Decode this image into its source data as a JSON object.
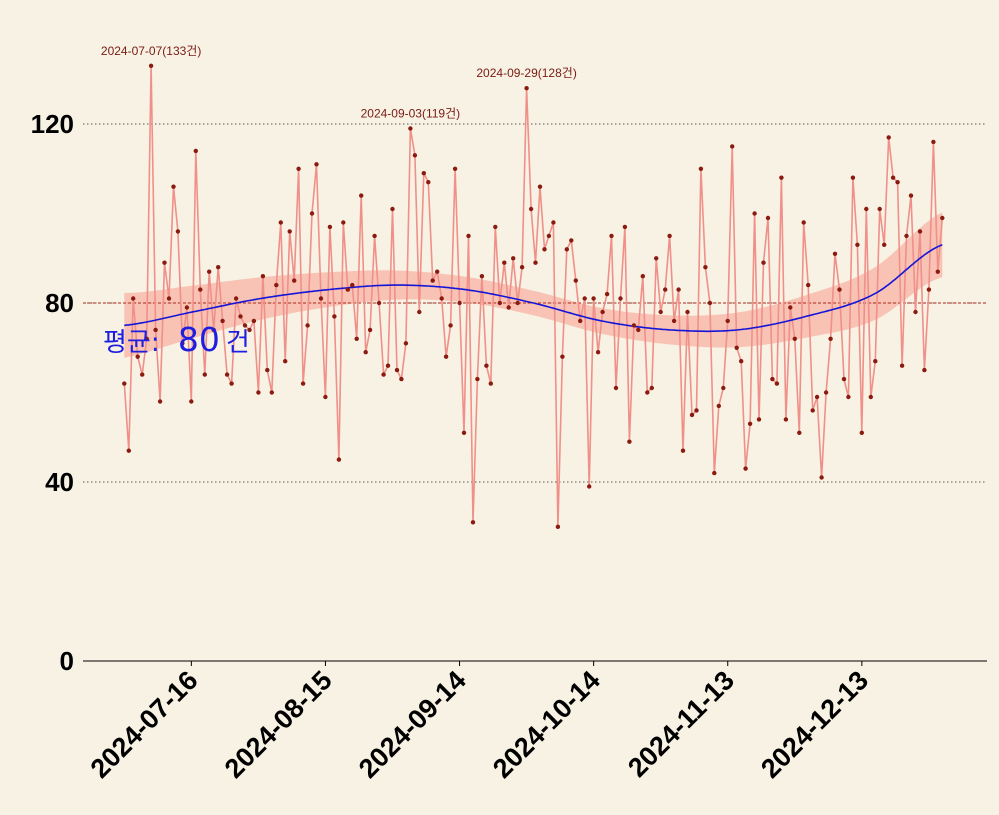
{
  "chart_data": {
    "type": "line",
    "title": "",
    "xlabel": "",
    "ylabel": "",
    "x_start": "2024-07-01",
    "ylim": [
      0,
      133
    ],
    "y_ticks": [
      "0",
      "40",
      "80",
      "120"
    ],
    "y_tick_values": [
      0,
      40,
      80,
      120
    ],
    "x_tick_labels": [
      "2024-07-16",
      "2024-08-15",
      "2024-09-14",
      "2024-10-14",
      "2024-11-13",
      "2024-12-13"
    ],
    "x_tick_dates": [
      "2024-07-16",
      "2024-08-15",
      "2024-09-14",
      "2024-10-14",
      "2024-11-13",
      "2024-12-13"
    ],
    "grid": "horizontal dotted",
    "mean": 80,
    "mean_label": "평균:  80 건",
    "series": [
      {
        "values": [
          62,
          47,
          81,
          68,
          64,
          72,
          133,
          74,
          58,
          89,
          81,
          106,
          96,
          71,
          79,
          58,
          114,
          83,
          64,
          87,
          74,
          88,
          76,
          64,
          62,
          81,
          77,
          75,
          74,
          76,
          60,
          86,
          65,
          60,
          84,
          98,
          67,
          96,
          85,
          110,
          62,
          75,
          100,
          111,
          81,
          59,
          97,
          77,
          45,
          98,
          83,
          84,
          72,
          104,
          69,
          74,
          95,
          80,
          64,
          66,
          101,
          65,
          63,
          71,
          119,
          113,
          78,
          109,
          107,
          85,
          87,
          81,
          68,
          75,
          110,
          80,
          51,
          95,
          31,
          63,
          86,
          66,
          62,
          97,
          80,
          89,
          79,
          90,
          80,
          88,
          128,
          101,
          89,
          106,
          92,
          95,
          98,
          30,
          68,
          92,
          94,
          85,
          76,
          81,
          39,
          81,
          69,
          78,
          82,
          95,
          61,
          81,
          97,
          49,
          75,
          74,
          86,
          60,
          61,
          90,
          78,
          83,
          95,
          76,
          83,
          47,
          78,
          55,
          56,
          110,
          88,
          80,
          42,
          57,
          61,
          76,
          115,
          70,
          67,
          43,
          53,
          100,
          54,
          89,
          99,
          63,
          62,
          108,
          54,
          79,
          72,
          51,
          98,
          84,
          56,
          59,
          41,
          60,
          72,
          91,
          83,
          63,
          59,
          108,
          93,
          51,
          101,
          59,
          67,
          101,
          93,
          117,
          108,
          107,
          66,
          95,
          104,
          78,
          96,
          65,
          83,
          116,
          87,
          99
        ]
      }
    ],
    "trend": [
      75,
      78,
      81,
      83,
      84,
      83,
      80,
      76,
      74,
      74,
      77,
      82,
      93
    ],
    "trend_band": 5,
    "annotations": [
      {
        "label": "2024-07-07(133건)",
        "date": "2024-07-07",
        "value": 133
      },
      {
        "label": "2024-09-03(119건)",
        "date": "2024-09-03",
        "value": 119
      },
      {
        "label": "2024-09-29(128건)",
        "date": "2024-09-29",
        "value": 128
      }
    ],
    "colors": {
      "background": "#f7f2e3",
      "line": "#f0908a",
      "point": "#8b1a10",
      "trend": "#1515d8",
      "band": "#f8b7a8",
      "mean_line": "#b0241a",
      "annotation": "#7a1a14",
      "mean_label": "#1e1ee0"
    }
  }
}
